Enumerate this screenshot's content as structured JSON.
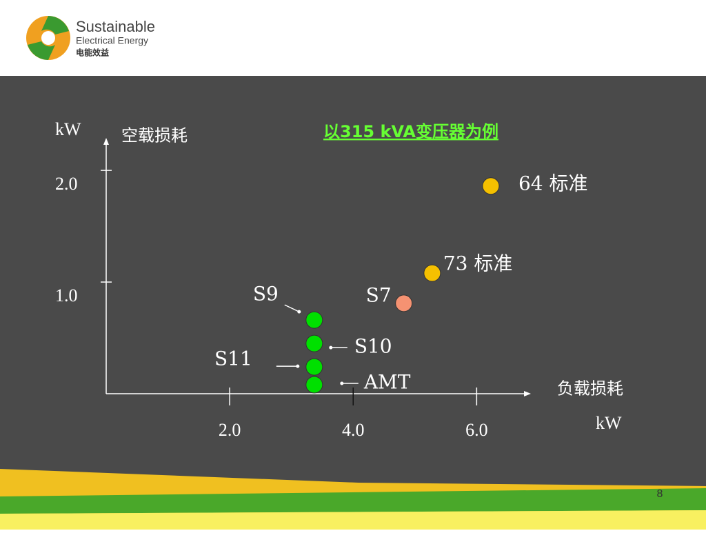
{
  "header": {
    "brand": "Sustainable",
    "tagline": "Electrical  Energy",
    "chinese": "电能效益"
  },
  "page_number": "8",
  "chart_data": {
    "type": "scatter",
    "title": "以315  kVA变压器为例",
    "y_axis_title": "空载损耗",
    "x_axis_title": "负载损耗",
    "y_unit": "kW",
    "x_unit": "kW",
    "x": [
      3.37,
      3.37,
      3.37,
      3.37,
      4.82,
      5.28,
      6.23
    ],
    "values": [
      0.66,
      0.45,
      0.24,
      0.08,
      0.81,
      1.08,
      1.86
    ],
    "point_labels": [
      "S9",
      "S10",
      "S11",
      "AMT",
      "S7",
      "73 标准",
      "64 标准"
    ],
    "colors": [
      "#00e000",
      "#00e000",
      "#00e000",
      "#00e000",
      "#f59272",
      "#f5c000",
      "#f5c000"
    ],
    "xlim": [
      0,
      6.8
    ],
    "ylim": [
      0,
      2.26
    ],
    "xticks": [
      {
        "value": 2,
        "label": "2.0"
      },
      {
        "value": 4,
        "label": "4.0"
      },
      {
        "value": 6,
        "label": "6.0"
      }
    ],
    "yticks": [
      {
        "value": 1,
        "label": "1.0"
      },
      {
        "value": 2,
        "label": "2.0"
      }
    ]
  }
}
